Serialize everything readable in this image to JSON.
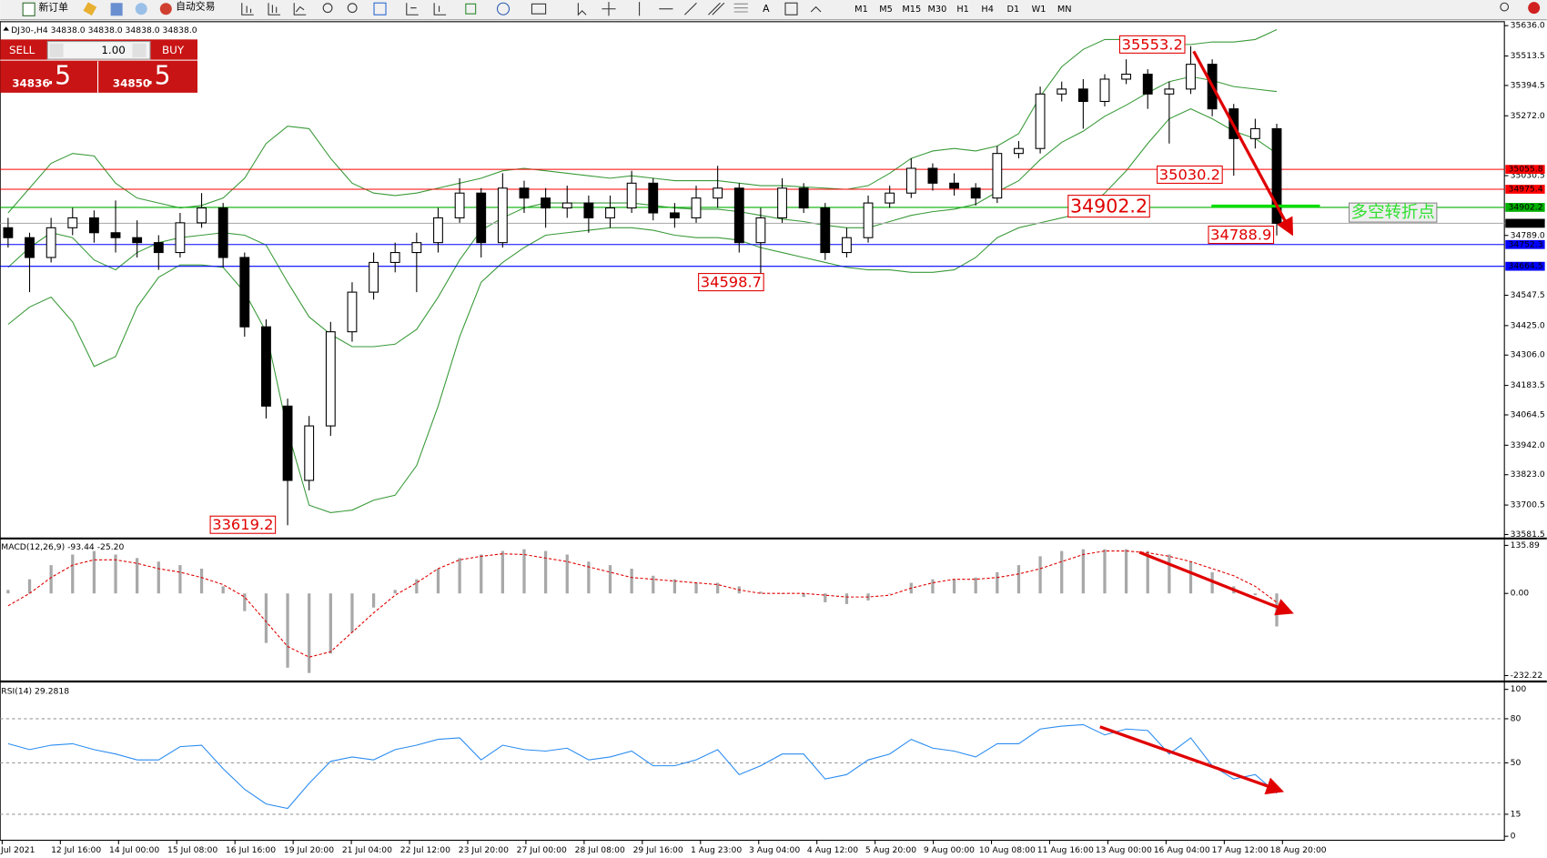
{
  "toolbar": {
    "new_order": "新订单",
    "auto_trade": "自动交易",
    "text_tool": "A",
    "timeframes": [
      "M1",
      "M5",
      "M15",
      "M30",
      "H1",
      "H4",
      "D1",
      "W1",
      "MN"
    ]
  },
  "trade_panel": {
    "sell": "SELL",
    "lots": "1.00",
    "buy": "BUY",
    "sell_main": "34836",
    "sell_frac": ".5",
    "buy_main": "34850",
    "buy_frac": ".5"
  },
  "annotations": [
    "35553.2",
    "35030.2",
    "34902.2",
    "34788.9",
    "34598.7",
    "33619.2",
    "多空转折点"
  ],
  "x_labels": [
    "Jul 2021",
    "12 Jul 16:00",
    "14 Jul 00:00",
    "15 Jul 08:00",
    "16 Jul 16:00",
    "19 Jul 20:00",
    "21 Jul 04:00",
    "22 Jul 12:00",
    "23 Jul 20:00",
    "27 Jul 00:00",
    "28 Jul 08:00",
    "29 Jul 16:00",
    "1 Aug 23:00",
    "3 Aug 04:00",
    "4 Aug 12:00",
    "5 Aug 20:00",
    "9 Aug 00:00",
    "10 Aug 08:00",
    "11 Aug 16:00",
    "13 Aug 00:00",
    "16 Aug 04:00",
    "17 Aug 12:00",
    "18 Aug 20:00"
  ],
  "chart_data": [
    {
      "type": "candlestick",
      "title": "DJ30-,H4  34838.0 34838.0 34838.0 34838.0",
      "ohlc": [
        [
          34820,
          34860,
          34740,
          34780
        ],
        [
          34780,
          34800,
          34560,
          34700
        ],
        [
          34700,
          34860,
          34680,
          34820
        ],
        [
          34820,
          34900,
          34790,
          34860
        ],
        [
          34860,
          34890,
          34760,
          34800
        ],
        [
          34800,
          34930,
          34720,
          34780
        ],
        [
          34780,
          34850,
          34700,
          34760
        ],
        [
          34760,
          34790,
          34650,
          34720
        ],
        [
          34720,
          34880,
          34700,
          34840
        ],
        [
          34840,
          34960,
          34820,
          34900
        ],
        [
          34900,
          34920,
          34660,
          34700
        ],
        [
          34700,
          34720,
          34380,
          34420
        ],
        [
          34420,
          34450,
          34050,
          34100
        ],
        [
          34100,
          34130,
          33619.2,
          33800
        ],
        [
          33800,
          34060,
          33760,
          34020
        ],
        [
          34020,
          34440,
          33980,
          34400
        ],
        [
          34400,
          34600,
          34360,
          34560
        ],
        [
          34560,
          34720,
          34530,
          34680
        ],
        [
          34680,
          34760,
          34640,
          34720
        ],
        [
          34720,
          34800,
          34560,
          34760
        ],
        [
          34760,
          34900,
          34720,
          34860
        ],
        [
          34860,
          35020,
          34840,
          34960
        ],
        [
          34960,
          34980,
          34700,
          34760
        ],
        [
          34760,
          35040,
          34740,
          34980
        ],
        [
          34980,
          35010,
          34880,
          34940
        ],
        [
          34940,
          34980,
          34820,
          34900
        ],
        [
          34900,
          34990,
          34860,
          34920
        ],
        [
          34920,
          34950,
          34800,
          34860
        ],
        [
          34860,
          34950,
          34820,
          34900
        ],
        [
          34900,
          35050,
          34880,
          35000
        ],
        [
          35000,
          35020,
          34850,
          34880
        ],
        [
          34880,
          34920,
          34820,
          34860
        ],
        [
          34860,
          34990,
          34840,
          34940
        ],
        [
          34940,
          35070,
          34900,
          34980
        ],
        [
          34980,
          35000,
          34720,
          34760
        ],
        [
          34760,
          34900,
          34598.7,
          34860
        ],
        [
          34860,
          35020,
          34840,
          34980
        ],
        [
          34980,
          35000,
          34880,
          34900
        ],
        [
          34900,
          34920,
          34690,
          34720
        ],
        [
          34720,
          34820,
          34700,
          34780
        ],
        [
          34780,
          34950,
          34760,
          34920
        ],
        [
          34920,
          34990,
          34900,
          34960
        ],
        [
          34960,
          35100,
          34940,
          35060
        ],
        [
          35060,
          35080,
          34970,
          35000
        ],
        [
          35000,
          35040,
          34950,
          34980
        ],
        [
          34980,
          35000,
          34910,
          34940
        ],
        [
          34940,
          35150,
          34920,
          35120
        ],
        [
          35120,
          35170,
          35100,
          35140
        ],
        [
          35140,
          35390,
          35120,
          35360
        ],
        [
          35360,
          35410,
          35330,
          35380
        ],
        [
          35380,
          35420,
          35220,
          35330
        ],
        [
          35330,
          35440,
          35310,
          35420
        ],
        [
          35420,
          35500,
          35400,
          35440
        ],
        [
          35440,
          35460,
          35300,
          35360
        ],
        [
          35360,
          35410,
          35160,
          35380
        ],
        [
          35380,
          35553.2,
          35360,
          35480
        ],
        [
          35480,
          35500,
          35270,
          35300
        ],
        [
          35300,
          35320,
          35030.2,
          35180
        ],
        [
          35180,
          35260,
          35140,
          35220
        ],
        [
          35220,
          35240,
          34788.9,
          34838
        ]
      ],
      "up_color": "#ffffff",
      "down_color": "#000000",
      "bands": {
        "color": "#3a9a3a",
        "upper": [
          34880,
          34980,
          35080,
          35120,
          35110,
          35000,
          34940,
          34920,
          34900,
          34910,
          34940,
          35020,
          35160,
          35230,
          35220,
          35100,
          35000,
          34960,
          34950,
          34960,
          34980,
          35000,
          35020,
          35050,
          35060,
          35050,
          35040,
          35030,
          35020,
          35030,
          35020,
          35010,
          35010,
          35010,
          35000,
          34990,
          34990,
          34985,
          34980,
          34975,
          34990,
          35040,
          35100,
          35130,
          35140,
          35130,
          35150,
          35200,
          35350,
          35470,
          35540,
          35580,
          35580,
          35570,
          35560,
          35560,
          35570,
          35570,
          35580,
          35620
        ],
        "middle": [
          34660,
          34740,
          34800,
          34780,
          34690,
          34650,
          34720,
          34760,
          34780,
          34790,
          34800,
          34790,
          34750,
          34600,
          34460,
          34390,
          34340,
          34340,
          34350,
          34410,
          34540,
          34690,
          34810,
          34860,
          34900,
          34920,
          34920,
          34920,
          34920,
          34920,
          34910,
          34900,
          34895,
          34895,
          34885,
          34870,
          34855,
          34845,
          34830,
          34820,
          34820,
          34845,
          34870,
          34885,
          34895,
          34915,
          34965,
          35010,
          35095,
          35165,
          35210,
          35270,
          35315,
          35365,
          35410,
          35430,
          35415,
          35390,
          35380,
          35370
        ],
        "lower": [
          34430,
          34500,
          34540,
          34440,
          34260,
          34300,
          34500,
          34620,
          34670,
          34670,
          34660,
          34560,
          34400,
          34000,
          33700,
          33670,
          33680,
          33720,
          33740,
          33860,
          34100,
          34380,
          34600,
          34680,
          34740,
          34790,
          34800,
          34810,
          34820,
          34820,
          34810,
          34790,
          34780,
          34780,
          34770,
          34740,
          34720,
          34700,
          34680,
          34660,
          34650,
          34650,
          34640,
          34640,
          34650,
          34700,
          34780,
          34820,
          34840,
          34860,
          34880,
          34960,
          35050,
          35160,
          35260,
          35300,
          35260,
          35210,
          35180,
          35120
        ]
      },
      "levels": [
        {
          "value": 35055.8,
          "color": "#ff0000"
        },
        {
          "value": 34975.4,
          "color": "#ff0000"
        },
        {
          "value": 34902.2,
          "color": "#00b000"
        },
        {
          "value": 34838,
          "label": "34838.0",
          "color": "#000000"
        },
        {
          "value": 34752.3,
          "color": "#0000ff"
        },
        {
          "value": 34664.5,
          "color": "#0000ff"
        }
      ],
      "ylim": [
        33581.5,
        35636.0
      ],
      "yticks": [
        {
          "value": 35636,
          "label": "35636.0"
        },
        35513.5,
        35394.5,
        {
          "value": 35272,
          "label": "35272.0"
        },
        35030.5,
        {
          "value": 34789,
          "label": "34789.0"
        },
        34547.5,
        {
          "value": 34425,
          "label": "34425.0"
        },
        {
          "value": 34306,
          "label": "34306.0"
        },
        34183.5,
        34064.5,
        {
          "value": 33942,
          "label": "33942.0"
        },
        {
          "value": 33823,
          "label": "33823.0"
        },
        33700.5,
        33581.5
      ]
    },
    {
      "type": "macd",
      "title": "MACD(12,26,9) -93.44 -25.20",
      "histogram": [
        10,
        40,
        80,
        110,
        120,
        110,
        100,
        90,
        80,
        70,
        20,
        -50,
        -140,
        -210,
        -225,
        -170,
        -110,
        -40,
        10,
        40,
        70,
        100,
        110,
        120,
        125,
        120,
        110,
        90,
        80,
        70,
        50,
        40,
        30,
        30,
        20,
        5,
        0,
        -10,
        -25,
        -30,
        -20,
        0,
        30,
        40,
        40,
        45,
        60,
        80,
        105,
        120,
        125,
        125,
        125,
        120,
        110,
        90,
        60,
        20,
        -5,
        -93.44
      ],
      "signal": [
        -35,
        0,
        45,
        80,
        95,
        95,
        85,
        70,
        60,
        45,
        25,
        -10,
        -80,
        -150,
        -180,
        -165,
        -110,
        -55,
        -5,
        30,
        70,
        95,
        105,
        112,
        110,
        100,
        90,
        75,
        60,
        45,
        40,
        35,
        30,
        25,
        10,
        0,
        0,
        0,
        -5,
        -10,
        -10,
        -5,
        15,
        30,
        40,
        40,
        45,
        55,
        70,
        90,
        110,
        120,
        120,
        115,
        105,
        90,
        70,
        50,
        20,
        -25.2
      ],
      "hist_color": "#a8a8a8",
      "signal_color": "#e00000",
      "ylim": [
        -232.22,
        135.89
      ],
      "yticks": [
        135.89,
        {
          "value": 0,
          "label": "0.00"
        },
        -232.22
      ]
    },
    {
      "type": "line",
      "title": "RSI(14) 29.2818",
      "values": [
        63,
        59,
        62,
        63,
        59,
        56,
        52,
        52,
        61,
        62,
        46,
        32,
        22,
        19,
        36,
        51,
        54,
        52,
        59,
        62,
        66,
        67,
        52,
        62,
        59,
        58,
        60,
        52,
        54,
        58,
        48,
        48,
        52,
        59,
        42,
        48,
        56,
        56,
        39,
        42,
        52,
        56,
        66,
        60,
        58,
        54,
        63,
        63,
        73,
        75,
        76,
        69,
        73,
        72,
        56,
        67,
        48,
        39,
        42,
        29.2818
      ],
      "color": "#2a8cf0",
      "levels": [
        80,
        50,
        15
      ],
      "ylim": [
        0,
        100
      ],
      "yticks": [
        100,
        80,
        50,
        15,
        0
      ]
    }
  ]
}
